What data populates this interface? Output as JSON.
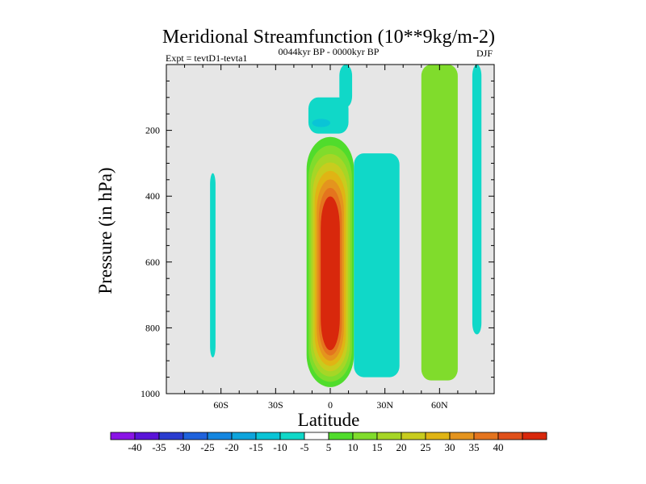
{
  "chart_data": {
    "type": "heatmap",
    "title": "Meridional Streamfunction (10**9kg/m-2)",
    "experiment_label": "Expt = tevtD1-tevta1",
    "period_label": "0044kyr BP - 0000kyr BP",
    "season_label": "DJF",
    "xlabel": "Latitude",
    "ylabel": "Pressure (in hPa)",
    "xlim": [
      -90,
      90
    ],
    "ylim": [
      1000,
      0
    ],
    "x_ticks": [
      {
        "value": -60,
        "label": "60S"
      },
      {
        "value": -30,
        "label": "30S"
      },
      {
        "value": 0,
        "label": "0"
      },
      {
        "value": 30,
        "label": "30N"
      },
      {
        "value": 60,
        "label": "60N"
      }
    ],
    "y_ticks": [
      {
        "value": 200,
        "label": "200"
      },
      {
        "value": 400,
        "label": "400"
      },
      {
        "value": 600,
        "label": "600"
      },
      {
        "value": 800,
        "label": "800"
      },
      {
        "value": 1000,
        "label": "1000"
      }
    ],
    "background_color": "#e6e6e6",
    "colorbar": {
      "colors": [
        "#8a14e6",
        "#5a14d8",
        "#2b3ccf",
        "#1f62dc",
        "#1486e0",
        "#0ea4dc",
        "#0ac4d6",
        "#10d8c8",
        "#ffffff",
        "#50dc2c",
        "#80dc2c",
        "#a6d626",
        "#c8cc1e",
        "#e0b414",
        "#e4941e",
        "#e4741e",
        "#e0501a",
        "#d8280c"
      ],
      "labels": [
        "-40",
        "-35",
        "-30",
        "-25",
        "-20",
        "-15",
        "-10",
        "-5",
        "5",
        "10",
        "15",
        "20",
        "25",
        "30",
        "35",
        "40"
      ]
    },
    "contour_regions": [
      {
        "name": "sh-high-lat-cell",
        "value": -10,
        "color": "#10d8c8",
        "lat": [
          -66,
          -63
        ],
        "p": [
          330,
          890
        ]
      },
      {
        "name": "upper-cell-outer",
        "value": -10,
        "color": "#10d8c8",
        "lat": [
          -12,
          10
        ],
        "p": [
          100,
          210
        ]
      },
      {
        "name": "upper-cell-core",
        "value": -15,
        "color": "#0ac4d6",
        "lat": [
          -10,
          0
        ],
        "p": [
          165,
          190
        ]
      },
      {
        "name": "upper-cell-column",
        "value": -10,
        "color": "#10d8c8",
        "lat": [
          5,
          12
        ],
        "p": [
          0,
          130
        ]
      },
      {
        "name": "tropical-cell",
        "value": 5,
        "color": "#50dc2c",
        "lat": [
          -13,
          13
        ],
        "p": [
          220,
          980
        ],
        "layers": [
          {
            "value": 5,
            "color": "#50dc2c"
          },
          {
            "value": 10,
            "color": "#80dc2c"
          },
          {
            "value": 15,
            "color": "#a6d626"
          },
          {
            "value": 20,
            "color": "#c8cc1e"
          },
          {
            "value": 25,
            "color": "#e0b414"
          },
          {
            "value": 30,
            "color": "#e4941e"
          },
          {
            "value": 35,
            "color": "#e4741e"
          },
          {
            "value": 40,
            "color": "#d8280c"
          }
        ]
      },
      {
        "name": "nh-subtropical-band",
        "value": -10,
        "color": "#10d8c8",
        "lat": [
          13,
          38
        ],
        "p": [
          270,
          950
        ]
      },
      {
        "name": "nh-ferrel-column",
        "value": 10,
        "color": "#80dc2c",
        "lat": [
          50,
          70
        ],
        "p": [
          0,
          960
        ]
      },
      {
        "name": "nh-polar-cell",
        "value": -10,
        "color": "#10d8c8",
        "lat": [
          78,
          83
        ],
        "p": [
          0,
          820
        ]
      }
    ]
  }
}
